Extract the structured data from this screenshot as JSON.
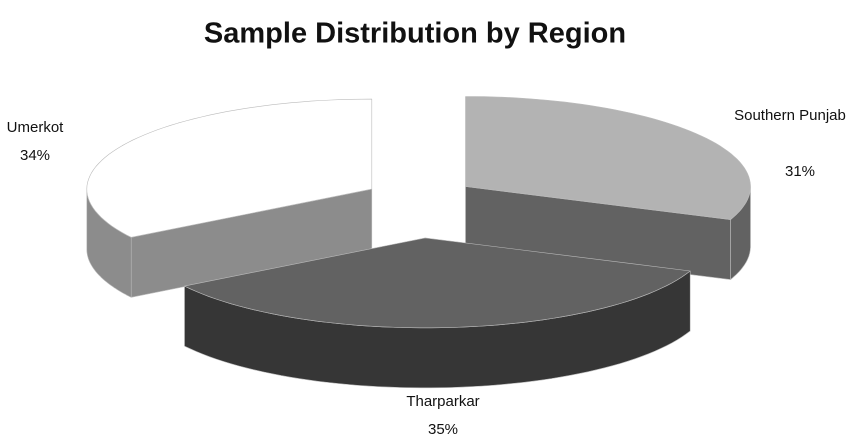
{
  "chart_data": {
    "type": "pie",
    "title": "Sample Distribution by Region",
    "categories": [
      "Southern Punjab",
      "Tharparkar",
      "Umerkot"
    ],
    "values": [
      31,
      35,
      34
    ],
    "value_labels": [
      "31%",
      "35%",
      "34%"
    ],
    "colors": [
      "#b3b3b3",
      "#626262",
      "#ffffff"
    ]
  }
}
